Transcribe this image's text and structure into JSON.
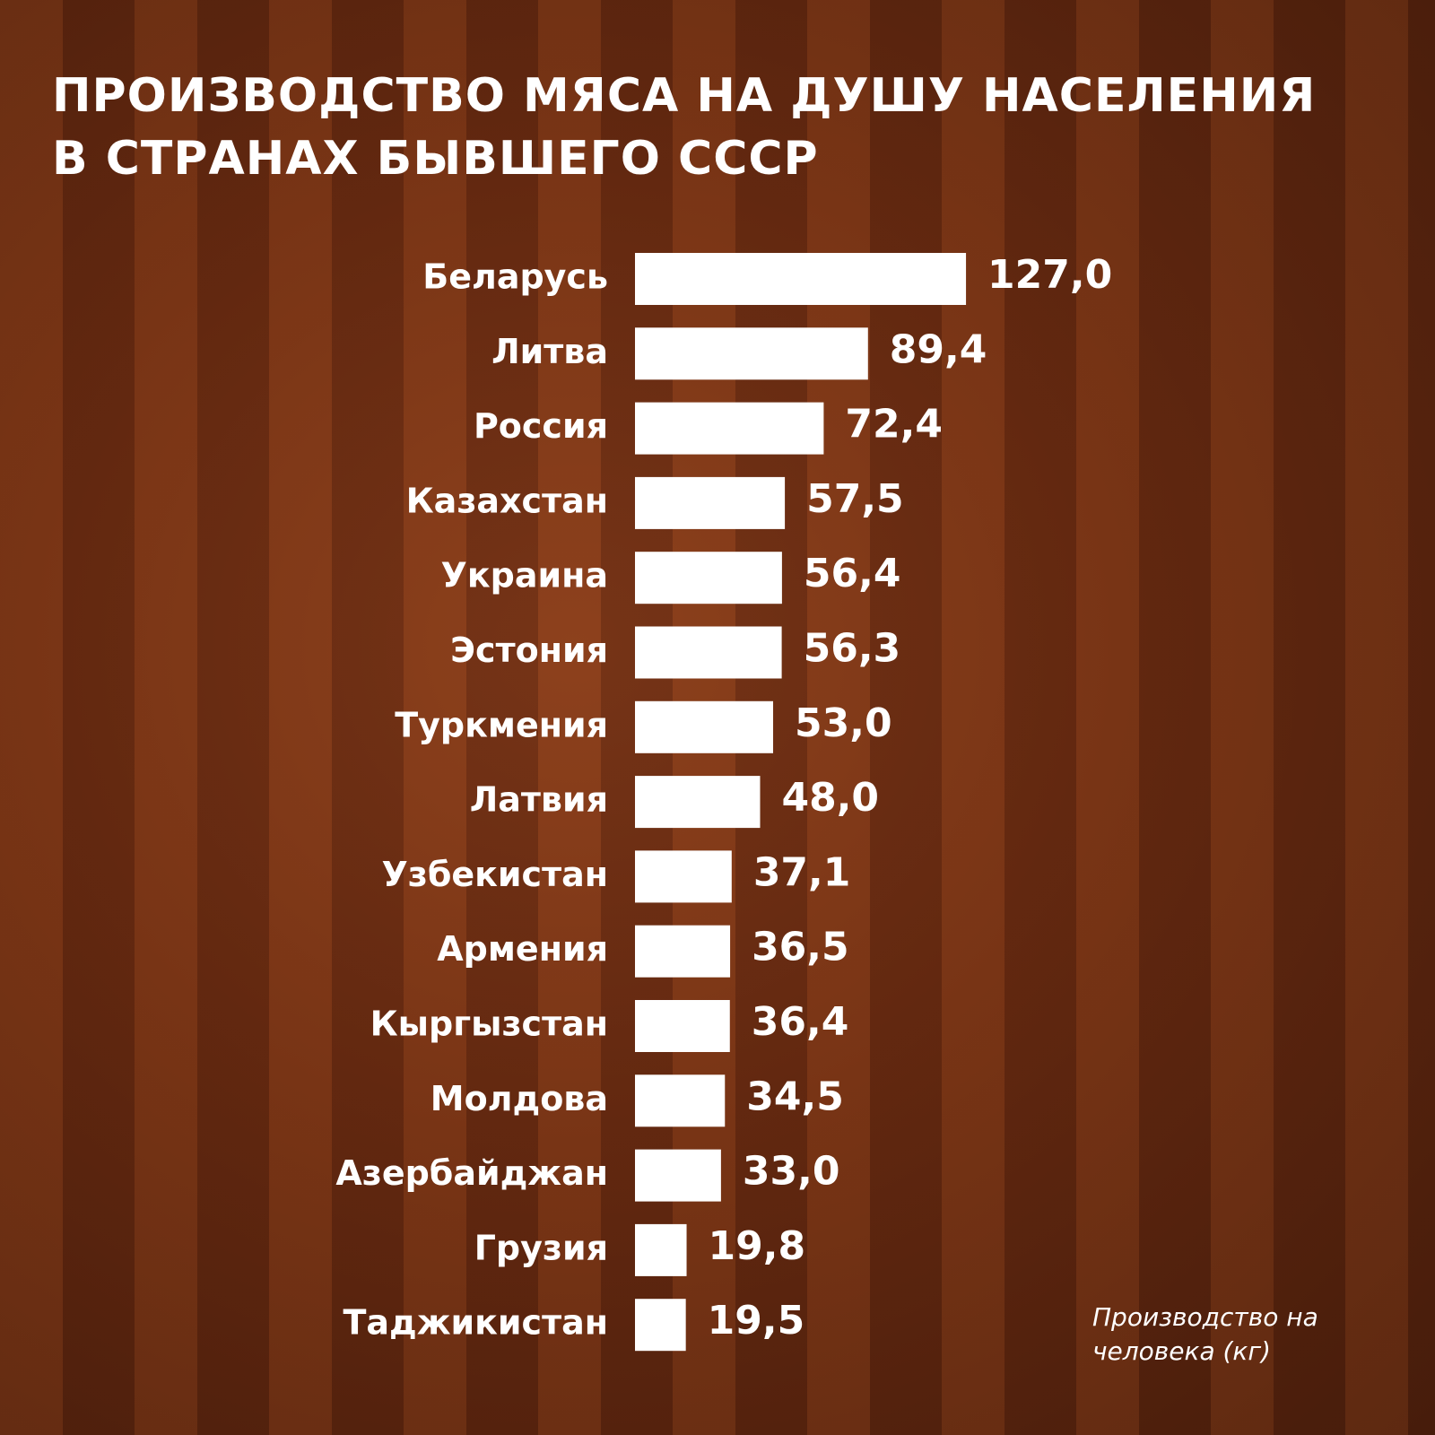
{
  "chart_data": {
    "type": "bar",
    "orientation": "horizontal",
    "title": "ПРОИЗВОДСТВО МЯСА НА ДУШУ НАСЕЛЕНИЯ В СТРАНАХ БЫВШЕГО СССР",
    "note": "Производство на человека (кг)",
    "categories": [
      "Беларусь",
      "Литва",
      "Россия",
      "Казахстан",
      "Украина",
      "Эстония",
      "Туркмения",
      "Латвия",
      "Узбекистан",
      "Армения",
      "Кыргызстан",
      "Молдова",
      "Азербайджан",
      "Грузия",
      "Таджикистан"
    ],
    "values": [
      127.0,
      89.4,
      72.4,
      57.5,
      56.4,
      56.3,
      53.0,
      48.0,
      37.1,
      36.5,
      36.4,
      34.5,
      33.0,
      19.8,
      19.5
    ],
    "value_labels": [
      "127,0",
      "89,4",
      "72,4",
      "57,5",
      "56,4",
      "56,3",
      "53,0",
      "48,0",
      "37,1",
      "36,5",
      "36,4",
      "34,5",
      "33,0",
      "19,8",
      "19,5"
    ],
    "color": "#ffffff"
  }
}
